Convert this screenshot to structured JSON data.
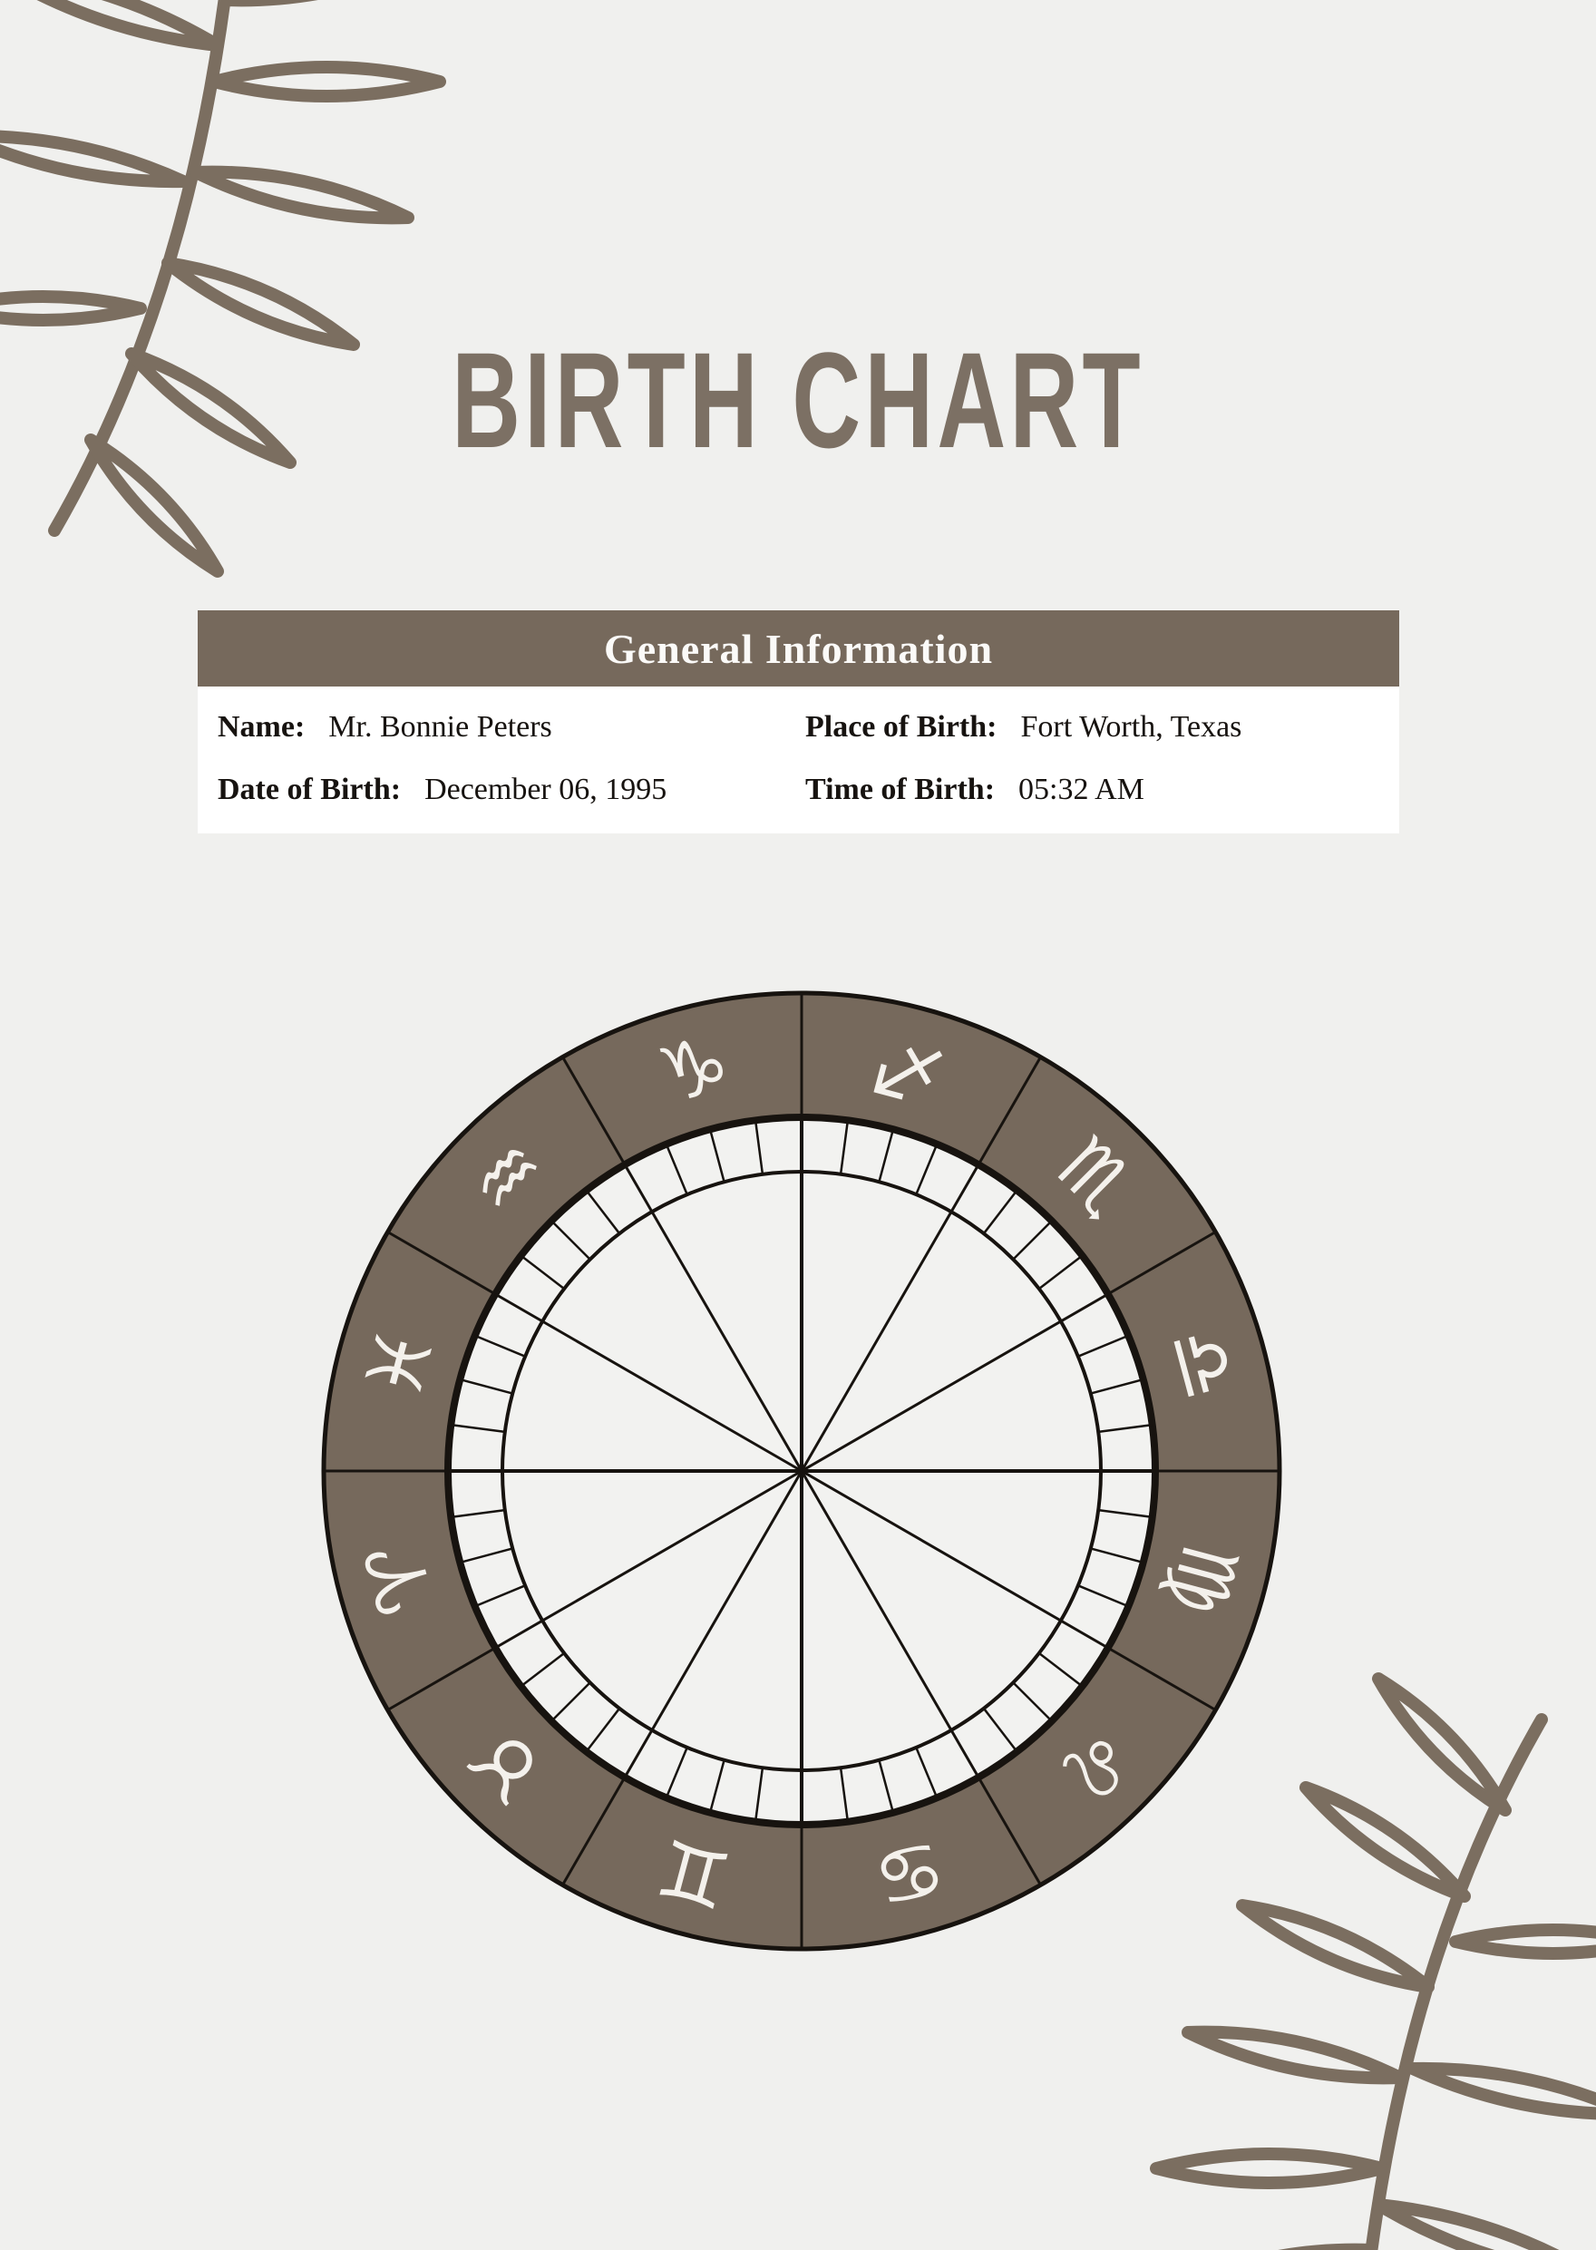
{
  "page": {
    "background": "#f0f0ee",
    "title": "BIRTH CHART",
    "title_color": "#7c7064"
  },
  "general_info": {
    "header": "General Information",
    "header_bg": "#76695c",
    "header_text_color": "#fbfaf8",
    "panel_bg": "#ffffff",
    "text_color": "#171310",
    "fields": [
      {
        "label": "Name:",
        "value": "Mr. Bonnie Peters"
      },
      {
        "label": "Place of Birth:",
        "value": "Fort Worth, Texas"
      },
      {
        "label": "Date of Birth:",
        "value": "December 06, 1995"
      },
      {
        "label": "Time of Birth:",
        "value": "05:32 AM"
      }
    ]
  },
  "wheel": {
    "ring_color": "#76695c",
    "inner_color": "#f2f2f0",
    "line_color": "#17130f",
    "glyph_color": "#f4f1ec",
    "signs": [
      {
        "name": "Sagittarius",
        "glyph": "♐",
        "flip": true
      },
      {
        "name": "Scorpio",
        "glyph": "♏"
      },
      {
        "name": "Libra",
        "glyph": "♎"
      },
      {
        "name": "Virgo",
        "glyph": "♍"
      },
      {
        "name": "Leo",
        "glyph": "♌"
      },
      {
        "name": "Cancer",
        "glyph": "♋"
      },
      {
        "name": "Gemini",
        "glyph": "♊"
      },
      {
        "name": "Taurus",
        "glyph": "♉"
      },
      {
        "name": "Aries",
        "glyph": "♈"
      },
      {
        "name": "Pisces",
        "glyph": "♓"
      },
      {
        "name": "Aquarius",
        "glyph": "♒"
      },
      {
        "name": "Capricorn",
        "glyph": "♑"
      }
    ]
  },
  "decor": {
    "leaf_color": "#7b6e60"
  }
}
